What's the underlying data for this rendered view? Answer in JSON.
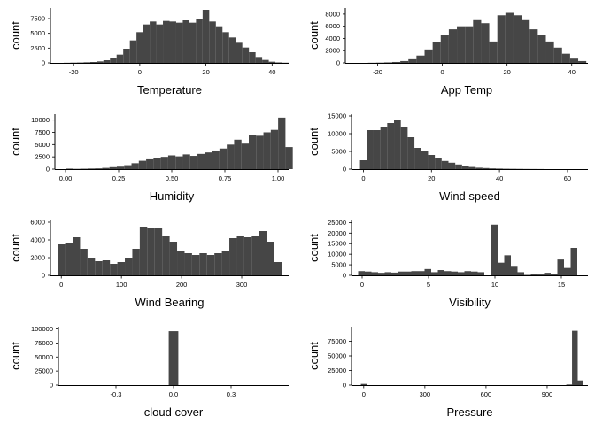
{
  "chart_data": [
    {
      "type": "bar",
      "xlabel": "Temperature",
      "ylabel": "count",
      "xlim": [
        -27,
        45
      ],
      "ylim": [
        0,
        9300
      ],
      "xticks": [
        -20,
        0,
        20,
        40
      ],
      "yticks": [
        0,
        2500,
        5000,
        7500
      ],
      "bin_start": -23,
      "bin_width": 2,
      "values": [
        20,
        40,
        60,
        100,
        150,
        250,
        450,
        800,
        1400,
        2400,
        3800,
        5200,
        6500,
        7000,
        6500,
        7100,
        7000,
        6800,
        7200,
        6800,
        7500,
        9000,
        7000,
        6200,
        5200,
        4300,
        3400,
        2600,
        1800,
        1000,
        500,
        200,
        80,
        30
      ]
    },
    {
      "type": "bar",
      "xlabel": "App Temp",
      "ylabel": "count",
      "xlim": [
        -30,
        45
      ],
      "ylim": [
        0,
        9000
      ],
      "xticks": [
        -20,
        0,
        20,
        40
      ],
      "yticks": [
        0,
        2000,
        4000,
        6000,
        8000
      ],
      "bin_start": -23,
      "bin_width": 2.5,
      "values": [
        20,
        40,
        80,
        150,
        300,
        600,
        1200,
        2200,
        3400,
        4500,
        5500,
        6000,
        6000,
        7000,
        6500,
        3500,
        7800,
        8200,
        7800,
        7000,
        5500,
        4500,
        3500,
        2500,
        1500,
        700,
        300
      ]
    },
    {
      "type": "bar",
      "xlabel": "Humidity",
      "ylabel": "count",
      "xlim": [
        -0.05,
        1.05
      ],
      "ylim": [
        0,
        11200
      ],
      "xticks": [
        0.0,
        0.25,
        0.5,
        0.75,
        1.0
      ],
      "xtick_labels": [
        "0.00",
        "0.25",
        "0.50",
        "0.75",
        "1.00"
      ],
      "yticks": [
        0,
        2500,
        5000,
        7500,
        10000
      ],
      "bin_start": 0,
      "bin_width": 0.0345,
      "values": [
        100,
        50,
        80,
        120,
        150,
        250,
        400,
        500,
        800,
        1200,
        1700,
        2000,
        2200,
        2500,
        2800,
        2600,
        3000,
        2700,
        3100,
        3400,
        3800,
        4200,
        5000,
        6000,
        5200,
        7000,
        6800,
        7500,
        8000,
        10500,
        4500
      ]
    },
    {
      "type": "bar",
      "xlabel": "Wind speed",
      "ylabel": "count",
      "xlim": [
        -3.5,
        66
      ],
      "ylim": [
        0,
        15500
      ],
      "xticks": [
        0,
        20,
        40,
        60
      ],
      "yticks": [
        0,
        5000,
        10000,
        15000
      ],
      "bin_start": -1,
      "bin_width": 2,
      "values": [
        2500,
        11000,
        11000,
        12000,
        13000,
        14000,
        12000,
        9000,
        6000,
        5000,
        4000,
        3000,
        2300,
        1800,
        1300,
        900,
        600,
        400,
        300,
        200,
        150,
        100,
        80,
        60,
        40,
        30,
        20
      ]
    },
    {
      "type": "bar",
      "xlabel": "Wind Bearing",
      "ylabel": "count",
      "xlim": [
        -18,
        378
      ],
      "ylim": [
        0,
        6200
      ],
      "xticks": [
        0,
        100,
        200,
        300
      ],
      "yticks": [
        0,
        2000,
        4000,
        6000
      ],
      "bin_start": -6,
      "bin_width": 12.41,
      "values": [
        3500,
        3700,
        4300,
        3000,
        2000,
        1600,
        1700,
        1300,
        1500,
        2000,
        3000,
        5500,
        5300,
        5300,
        4500,
        3800,
        2800,
        2500,
        2300,
        2500,
        2300,
        2500,
        2800,
        4200,
        4500,
        4300,
        4500,
        5000,
        3800,
        1500
      ]
    },
    {
      "type": "bar",
      "xlabel": "Visibility",
      "ylabel": "count",
      "xlim": [
        -0.8,
        17
      ],
      "ylim": [
        0,
        26000
      ],
      "xticks": [
        0,
        5,
        10,
        15
      ],
      "yticks": [
        0,
        5000,
        10000,
        15000,
        20000,
        25000
      ],
      "bin_start": -0.3,
      "bin_width": 0.5,
      "values": [
        2000,
        1800,
        1500,
        1200,
        1500,
        1300,
        1800,
        1800,
        2000,
        2000,
        3000,
        1500,
        2500,
        2000,
        1800,
        1500,
        2000,
        1800,
        1500,
        0,
        24000,
        6000,
        9500,
        4500,
        1500,
        200,
        500,
        400,
        1200,
        800,
        7500,
        3500,
        13000
      ]
    },
    {
      "type": "bar",
      "xlabel": "cloud cover",
      "ylabel": "count",
      "xlim": [
        -0.6,
        0.6
      ],
      "ylim": [
        0,
        104000
      ],
      "xticks": [
        -0.3,
        0.0,
        0.3
      ],
      "xtick_labels": [
        "-0.3",
        "0.0",
        "0.3"
      ],
      "yticks": [
        0,
        25000,
        50000,
        75000,
        100000
      ],
      "bin_start": -0.025,
      "bin_width": 0.05,
      "values": [
        96000
      ]
    },
    {
      "type": "bar",
      "xlabel": "Pressure",
      "ylabel": "count",
      "xlim": [
        -60,
        1100
      ],
      "ylim": [
        0,
        100000
      ],
      "xticks": [
        0,
        300,
        600,
        900
      ],
      "yticks": [
        0,
        25000,
        50000,
        75000
      ],
      "bin_start": -14,
      "bin_width": 28,
      "values": [
        2000,
        0,
        0,
        0,
        0,
        0,
        0,
        0,
        0,
        0,
        0,
        0,
        0,
        0,
        0,
        0,
        0,
        0,
        0,
        0,
        0,
        0,
        0,
        0,
        0,
        0,
        0,
        0,
        0,
        0,
        0,
        0,
        0,
        0,
        0,
        0,
        1000,
        93000,
        8000
      ]
    }
  ]
}
